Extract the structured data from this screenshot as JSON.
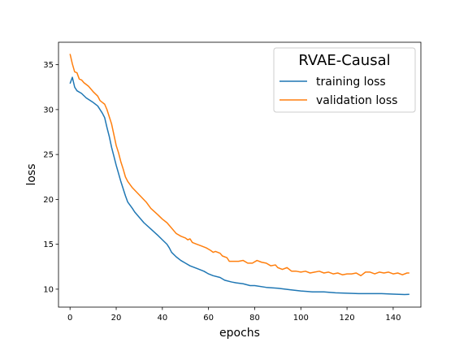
{
  "chart_data": {
    "type": "line",
    "title": "",
    "xlabel": "epochs",
    "ylabel": "loss",
    "xlim": [
      -5,
      152
    ],
    "ylim": [
      8.0,
      37.5
    ],
    "xticks": [
      0,
      20,
      40,
      60,
      80,
      100,
      120,
      140
    ],
    "yticks": [
      10,
      15,
      20,
      25,
      30,
      35
    ],
    "grid": false,
    "legend": {
      "title": "RVAE-Causal",
      "placement": "top-right"
    },
    "series": [
      {
        "name": "training loss",
        "color": "#1f77b4",
        "points": [
          [
            0,
            32.9
          ],
          [
            1,
            33.6
          ],
          [
            2,
            32.5
          ],
          [
            3,
            32.1
          ],
          [
            5,
            31.8
          ],
          [
            7,
            31.3
          ],
          [
            10,
            30.8
          ],
          [
            12,
            30.4
          ],
          [
            14,
            29.6
          ],
          [
            15,
            29.1
          ],
          [
            16,
            28.0
          ],
          [
            17,
            27.0
          ],
          [
            18,
            25.8
          ],
          [
            19,
            24.8
          ],
          [
            20,
            23.8
          ],
          [
            21,
            22.9
          ],
          [
            22,
            22.0
          ],
          [
            23,
            21.2
          ],
          [
            24,
            20.4
          ],
          [
            25,
            19.7
          ],
          [
            27,
            19.0
          ],
          [
            28,
            18.6
          ],
          [
            30,
            18.0
          ],
          [
            32,
            17.4
          ],
          [
            35,
            16.7
          ],
          [
            38,
            16.0
          ],
          [
            40,
            15.5
          ],
          [
            42,
            15.0
          ],
          [
            43,
            14.6
          ],
          [
            44,
            14.1
          ],
          [
            46,
            13.6
          ],
          [
            48,
            13.2
          ],
          [
            50,
            12.9
          ],
          [
            52,
            12.6
          ],
          [
            55,
            12.3
          ],
          [
            58,
            12.0
          ],
          [
            60,
            11.7
          ],
          [
            62,
            11.5
          ],
          [
            65,
            11.3
          ],
          [
            67,
            11.0
          ],
          [
            70,
            10.8
          ],
          [
            72,
            10.7
          ],
          [
            75,
            10.6
          ],
          [
            78,
            10.4
          ],
          [
            80,
            10.4
          ],
          [
            85,
            10.2
          ],
          [
            90,
            10.1
          ],
          [
            95,
            9.95
          ],
          [
            100,
            9.8
          ],
          [
            105,
            9.7
          ],
          [
            110,
            9.7
          ],
          [
            115,
            9.6
          ],
          [
            120,
            9.55
          ],
          [
            125,
            9.5
          ],
          [
            130,
            9.5
          ],
          [
            135,
            9.5
          ],
          [
            140,
            9.45
          ],
          [
            145,
            9.4
          ],
          [
            147,
            9.42
          ]
        ]
      },
      {
        "name": "validation loss",
        "color": "#ff7f0e",
        "points": [
          [
            0,
            36.2
          ],
          [
            1,
            35.1
          ],
          [
            2,
            34.2
          ],
          [
            3,
            34.1
          ],
          [
            4,
            33.4
          ],
          [
            5,
            33.3
          ],
          [
            6,
            33.0
          ],
          [
            8,
            32.6
          ],
          [
            10,
            32.0
          ],
          [
            12,
            31.5
          ],
          [
            13,
            31.0
          ],
          [
            14,
            30.8
          ],
          [
            15,
            30.6
          ],
          [
            16,
            30.0
          ],
          [
            17,
            29.2
          ],
          [
            18,
            28.4
          ],
          [
            19,
            27.2
          ],
          [
            20,
            26.0
          ],
          [
            21,
            25.2
          ],
          [
            22,
            24.2
          ],
          [
            23,
            23.4
          ],
          [
            24,
            22.5
          ],
          [
            25,
            22.0
          ],
          [
            27,
            21.3
          ],
          [
            30,
            20.5
          ],
          [
            33,
            19.7
          ],
          [
            35,
            19.0
          ],
          [
            38,
            18.3
          ],
          [
            40,
            17.8
          ],
          [
            42,
            17.4
          ],
          [
            44,
            16.8
          ],
          [
            45,
            16.5
          ],
          [
            46,
            16.2
          ],
          [
            48,
            15.9
          ],
          [
            50,
            15.7
          ],
          [
            51,
            15.5
          ],
          [
            52,
            15.6
          ],
          [
            53,
            15.2
          ],
          [
            55,
            15.0
          ],
          [
            57,
            14.8
          ],
          [
            59,
            14.6
          ],
          [
            61,
            14.3
          ],
          [
            62,
            14.1
          ],
          [
            63,
            14.2
          ],
          [
            65,
            14.0
          ],
          [
            66,
            13.7
          ],
          [
            68,
            13.5
          ],
          [
            69,
            13.1
          ],
          [
            71,
            13.1
          ],
          [
            73,
            13.1
          ],
          [
            75,
            13.2
          ],
          [
            77,
            12.9
          ],
          [
            79,
            12.9
          ],
          [
            81,
            13.2
          ],
          [
            83,
            13.0
          ],
          [
            85,
            12.9
          ],
          [
            87,
            12.6
          ],
          [
            89,
            12.7
          ],
          [
            90,
            12.4
          ],
          [
            92,
            12.2
          ],
          [
            94,
            12.4
          ],
          [
            96,
            12.0
          ],
          [
            98,
            12.0
          ],
          [
            100,
            11.9
          ],
          [
            102,
            12.0
          ],
          [
            104,
            11.8
          ],
          [
            106,
            11.9
          ],
          [
            108,
            12.0
          ],
          [
            110,
            11.8
          ],
          [
            112,
            11.9
          ],
          [
            114,
            11.7
          ],
          [
            116,
            11.8
          ],
          [
            118,
            11.6
          ],
          [
            120,
            11.7
          ],
          [
            122,
            11.7
          ],
          [
            124,
            11.8
          ],
          [
            126,
            11.5
          ],
          [
            128,
            11.9
          ],
          [
            130,
            11.9
          ],
          [
            132,
            11.7
          ],
          [
            134,
            11.9
          ],
          [
            136,
            11.8
          ],
          [
            138,
            11.9
          ],
          [
            140,
            11.7
          ],
          [
            142,
            11.8
          ],
          [
            144,
            11.6
          ],
          [
            146,
            11.8
          ],
          [
            147,
            11.8
          ]
        ]
      }
    ]
  }
}
